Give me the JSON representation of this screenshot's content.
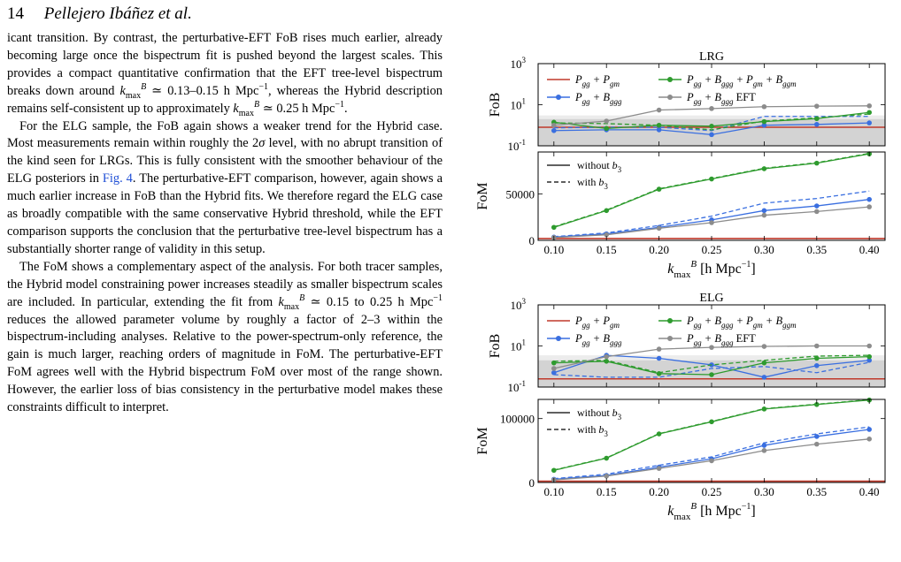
{
  "header": {
    "page_number": "14",
    "authors": "Pellejero Ibáñez et al."
  },
  "colors": {
    "red": "#c0392b",
    "green": "#2e9b2e",
    "blue": "#3a6fe0",
    "gray": "#8c8c8c",
    "link": "#1f4fd6"
  },
  "icons": {
    "line_marker": "filled-circle"
  },
  "legend_labels": {
    "pgg_pgm": "P_gg + P_gm",
    "pgg_bggg": "P_gg + B_ggg",
    "pgg_bggg_pgm_bggm": "P_gg + B_ggg + P_gm + B_ggm",
    "pgg_bggg_eft": "P_gg + B_ggg EFT",
    "without_b3": "without b3",
    "with_b3": "with b3"
  },
  "chart_data": [
    {
      "type": "line",
      "title": "LRG",
      "panel": "FoB",
      "ylabel": "FoB",
      "yscale": "log",
      "ylim": [
        0.1,
        1000
      ],
      "yticks": [
        "10^-1",
        "10^1",
        "10^3"
      ],
      "x": [
        0.1,
        0.15,
        0.2,
        0.25,
        0.3,
        0.35,
        0.4
      ],
      "shaded_bands": [
        [
          0.1,
          2
        ],
        [
          0.1,
          3
        ]
      ],
      "series": [
        {
          "name": "P_gg + P_gm",
          "color": "red",
          "values": [
            0.8,
            0.8,
            0.8,
            0.8,
            0.8,
            0.8,
            0.8
          ]
        },
        {
          "name": "P_gg + B_ggg",
          "color": "blue",
          "variant": "without b3",
          "values": [
            0.55,
            0.6,
            0.6,
            0.35,
            1.0,
            1.1,
            1.3
          ]
        },
        {
          "name": "P_gg + B_ggg",
          "color": "blue",
          "variant": "with b3",
          "values": [
            0.75,
            0.8,
            0.8,
            0.55,
            2.7,
            2.7,
            2.7
          ]
        },
        {
          "name": "P_gg + B_ggg + P_gm + B_ggm",
          "color": "green",
          "variant": "without b3",
          "values": [
            1.4,
            0.7,
            1.0,
            0.9,
            1.5,
            2.1,
            4.2
          ]
        },
        {
          "name": "P_gg + B_ggg + P_gm + B_ggm",
          "color": "green",
          "variant": "with b3",
          "values": [
            1.3,
            1.2,
            1.0,
            0.6,
            1.6,
            2.3,
            3.5
          ]
        },
        {
          "name": "P_gg + B_ggg EFT",
          "color": "gray",
          "values": [
            1.0,
            1.6,
            5.5,
            6.5,
            8.0,
            8.5,
            8.8
          ]
        }
      ]
    },
    {
      "type": "line",
      "title": "",
      "panel": "FoM",
      "ylabel": "FoM",
      "ylim": [
        0,
        95000
      ],
      "yticks": [
        "0",
        "50000"
      ],
      "xlabel": "k_max^B [h Mpc^-1]",
      "x": [
        0.1,
        0.15,
        0.2,
        0.25,
        0.3,
        0.35,
        0.4
      ],
      "xticks": [
        "0.10",
        "0.15",
        "0.20",
        "0.25",
        "0.30",
        "0.35",
        "0.40"
      ],
      "legend": [
        "without b3",
        "with b3"
      ],
      "series": [
        {
          "name": "P_gg + P_gm",
          "color": "red",
          "values": [
            2000,
            2000,
            2000,
            2000,
            2000,
            2000,
            2000
          ]
        },
        {
          "name": "P_gg + B_ggg",
          "color": "blue",
          "variant": "without b3",
          "values": [
            3500,
            7000,
            14000,
            22000,
            32000,
            37000,
            44000
          ]
        },
        {
          "name": "P_gg + B_ggg",
          "color": "blue",
          "variant": "with b3",
          "values": [
            4000,
            8000,
            16000,
            26000,
            40000,
            45000,
            53000
          ]
        },
        {
          "name": "P_gg + B_ggg + P_gm + B_ggm",
          "color": "green",
          "variant": "without b3",
          "values": [
            14000,
            32000,
            55000,
            66000,
            77000,
            83000,
            93000
          ]
        },
        {
          "name": "P_gg + B_ggg + P_gm + B_ggm",
          "color": "green",
          "variant": "with b3",
          "values": [
            14500,
            32500,
            55500,
            66500,
            77500,
            83500,
            93500
          ]
        },
        {
          "name": "P_gg + B_ggg EFT",
          "color": "gray",
          "values": [
            3000,
            6000,
            13000,
            19000,
            27000,
            31000,
            36000
          ]
        }
      ]
    },
    {
      "type": "line",
      "title": "ELG",
      "panel": "FoB",
      "ylabel": "FoB",
      "yscale": "log",
      "ylim": [
        0.1,
        1000
      ],
      "yticks": [
        "10^-1",
        "10^1",
        "10^3"
      ],
      "x": [
        0.1,
        0.15,
        0.2,
        0.25,
        0.3,
        0.35,
        0.4
      ],
      "shaded_bands": [
        [
          0.1,
          2
        ],
        [
          0.1,
          3.5
        ]
      ],
      "series": [
        {
          "name": "P_gg + P_gm",
          "color": "red",
          "values": [
            0.25,
            0.25,
            0.25,
            0.25,
            0.25,
            0.25,
            0.25
          ]
        },
        {
          "name": "P_gg + B_ggg",
          "color": "blue",
          "variant": "without b3",
          "values": [
            0.5,
            3.5,
            2.5,
            1.2,
            0.3,
            1.1,
            2.0
          ]
        },
        {
          "name": "P_gg + B_ggg",
          "color": "blue",
          "variant": "with b3",
          "values": [
            0.4,
            0.3,
            0.3,
            0.8,
            1.0,
            0.5,
            1.6
          ]
        },
        {
          "name": "P_gg + B_ggg + P_gm + B_ggm",
          "color": "green",
          "variant": "without b3",
          "values": [
            1.5,
            1.8,
            0.45,
            0.4,
            1.5,
            2.5,
            3.0
          ]
        },
        {
          "name": "P_gg + B_ggg + P_gm + B_ggm",
          "color": "green",
          "variant": "with b3",
          "values": [
            1.8,
            2.0,
            0.5,
            1.2,
            2.0,
            3.2,
            3.5
          ]
        },
        {
          "name": "P_gg + B_ggg EFT",
          "color": "gray",
          "values": [
            0.8,
            3.0,
            7.0,
            8.5,
            9.5,
            10.0,
            10.0
          ]
        }
      ]
    },
    {
      "type": "line",
      "title": "",
      "panel": "FoM",
      "ylabel": "FoM",
      "ylim": [
        0,
        130000
      ],
      "yticks": [
        "0",
        "100000"
      ],
      "xlabel": "k_max^B [h Mpc^-1]",
      "x": [
        0.1,
        0.15,
        0.2,
        0.25,
        0.3,
        0.35,
        0.4
      ],
      "xticks": [
        "0.10",
        "0.15",
        "0.20",
        "0.25",
        "0.30",
        "0.35",
        "0.40"
      ],
      "legend": [
        "without b3",
        "with b3"
      ],
      "series": [
        {
          "name": "P_gg + P_gm",
          "color": "red",
          "values": [
            2000,
            2000,
            2000,
            2000,
            2000,
            2000,
            2000
          ]
        },
        {
          "name": "P_gg + B_ggg",
          "color": "blue",
          "variant": "without b3",
          "values": [
            5000,
            11000,
            24000,
            37000,
            58000,
            72000,
            83000
          ]
        },
        {
          "name": "P_gg + B_ggg",
          "color": "blue",
          "variant": "with b3",
          "values": [
            6000,
            13000,
            27000,
            40000,
            62000,
            76000,
            87000
          ]
        },
        {
          "name": "P_gg + B_ggg + P_gm + B_ggm",
          "color": "green",
          "variant": "without b3",
          "values": [
            19000,
            38000,
            76000,
            95000,
            115000,
            122000,
            129000
          ]
        },
        {
          "name": "P_gg + B_ggg + P_gm + B_ggm",
          "color": "green",
          "variant": "with b3",
          "values": [
            19500,
            38500,
            76500,
            95500,
            115500,
            122500,
            129500
          ]
        },
        {
          "name": "P_gg + B_ggg EFT",
          "color": "gray",
          "values": [
            4000,
            10000,
            22000,
            34000,
            50000,
            60000,
            68000
          ]
        }
      ]
    }
  ],
  "body": {
    "p1_a": "icant transition. By contrast, the perturbative-EFT FoB rises much earlier, already becoming large once the bispectrum fit is pushed beyond the largest scales. This provides a compact quantitative confirmation that the EFT tree-level bispectrum breaks down around ",
    "p1_k1": "0.13–0.15",
    "p1_b": ", whereas the Hybrid description remains self-consistent up to approximately ",
    "p1_k2": "0.25",
    "p1_end": ".",
    "unit": "h Mpc",
    "p2_a": "For the ELG sample, the FoB again shows a weaker trend for the Hybrid case. Most measurements remain within roughly the 2",
    "p2_b": " level, with no abrupt transition of the kind seen for LRGs. This is fully consistent with the smoother behaviour of the ELG posteriors in ",
    "p2_fig": "Fig. 4",
    "p2_c": ". The perturbative-EFT comparison, however, again shows a much earlier increase in FoB than the Hybrid fits. We therefore regard the ELG case as broadly compatible with the same conservative Hybrid threshold, while the EFT comparison supports the conclusion that the perturbative tree-level bispectrum has a substantially shorter range of validity in this setup.",
    "p3_a": "The FoM shows a complementary aspect of the analysis. For both tracer samples, the Hybrid model constraining power increases steadily as smaller bispectrum scales are included. In particular, extending the fit from ",
    "p3_k1": "0.15",
    "p3_b": " to ",
    "p3_k2": "0.25",
    "p3_c": " reduces the allowed parameter volume by roughly a factor of 2–3 within the bispectrum-including analyses. Relative to the power-spectrum-only reference, the gain is much larger, reaching orders of magnitude in FoM. The perturbative-EFT FoM agrees well with the Hybrid bispectrum FoM over most of the range shown. However, the earlier loss of bias consistency in the perturbative model makes these constraints difficult to interpret."
  }
}
